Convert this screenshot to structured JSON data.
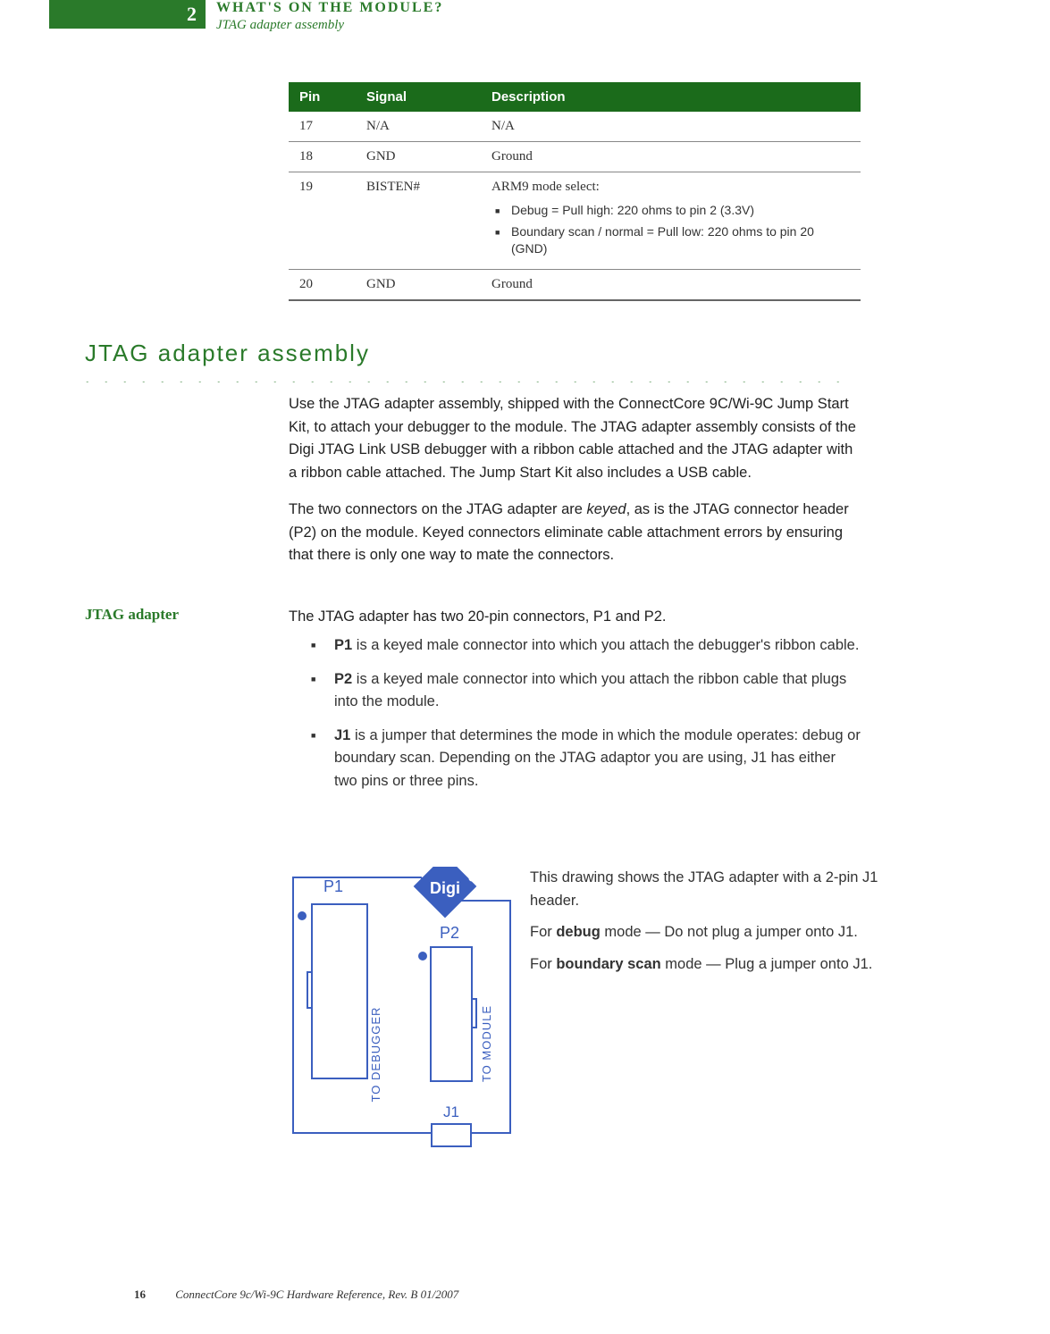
{
  "colors": {
    "green_primary": "#2a7a2a",
    "green_header": "#1b6b1b",
    "text": "#333333",
    "border": "#888888",
    "white": "#ffffff"
  },
  "header": {
    "chapter_number": "2",
    "chapter_title": "WHAT'S ON THE MODULE?",
    "subtitle": "JTAG adapter assembly"
  },
  "table": {
    "headers": {
      "pin": "Pin",
      "signal": "Signal",
      "description": "Description"
    },
    "rows": [
      {
        "pin": "17",
        "signal": "N/A",
        "desc": "N/A",
        "bullets": []
      },
      {
        "pin": "18",
        "signal": "GND",
        "desc": "Ground",
        "bullets": []
      },
      {
        "pin": "19",
        "signal": "BISTEN#",
        "desc": "ARM9 mode select:",
        "bullets": [
          "Debug = Pull high: 220 ohms to pin 2 (3.3V)",
          "Boundary scan / normal = Pull low: 220 ohms to pin 20 (GND)"
        ]
      },
      {
        "pin": "20",
        "signal": "GND",
        "desc": "Ground",
        "bullets": []
      }
    ]
  },
  "section_heading": "JTAG adapter assembly",
  "dotted": ". . . . . . . . . . . . . . . . . . . . . . . . . . . . . . . . . . . . . . . . . . . . . . . . . . . . . . . . . . . . . . . . . . . . . . . . . . . . . . . . . .",
  "para1": "Use the JTAG adapter assembly, shipped with the ConnectCore 9C/Wi-9C Jump Start Kit, to attach your debugger to the module. The JTAG adapter assembly consists of the Digi JTAG Link USB debugger with a ribbon cable attached and the JTAG adapter with a ribbon cable attached. The Jump Start Kit also includes a USB cable.",
  "para2_prefix": "The two connectors on the JTAG adapter are ",
  "para2_keyed": "keyed",
  "para2_suffix": ", as is the JTAG connector header (P2) on the module. Keyed connectors eliminate cable attachment errors by ensuring that there is only one way to mate the connectors.",
  "subsection_label": "JTAG adapter",
  "para3": "The JTAG adapter has two 20-pin connectors, P1 and P2.",
  "list": [
    {
      "bold": "P1",
      "text": " is a keyed male connector into which you attach the debugger's ribbon cable."
    },
    {
      "bold": "P2",
      "text": " is a keyed male connector into which you attach the ribbon cable that plugs into the module."
    },
    {
      "bold": "J1",
      "text": " is a jumper that determines the mode in which the module operates: debug or boundary scan. Depending on the JTAG adaptor you are using, J1 has either two pins or three pins."
    }
  ],
  "side": {
    "line1": "This drawing shows the JTAG adapter with a 2-pin J1 header.",
    "line2_pre": "For ",
    "line2_bold": "debug",
    "line2_post": " mode — Do not plug a jumper onto J1.",
    "line3_pre": "For ",
    "line3_bold": "boundary scan",
    "line3_post": " mode — Plug a jumper onto J1."
  },
  "diagram": {
    "labels": {
      "p1": "P1",
      "p2": "P2",
      "j1": "J1",
      "to_debugger": "TO DEBUGGER",
      "to_module": "TO MODULE",
      "logo": "Digi"
    },
    "colors": {
      "outline": "#3b5fbf",
      "fill": "#ffffff",
      "dot": "#3b5fbf",
      "logo_bg": "#3b5fbf",
      "logo_text": "#ffffff"
    }
  },
  "footer": {
    "page": "16",
    "text": "ConnectCore 9c/Wi-9C Hardware Reference, Rev. B  01/2007"
  }
}
